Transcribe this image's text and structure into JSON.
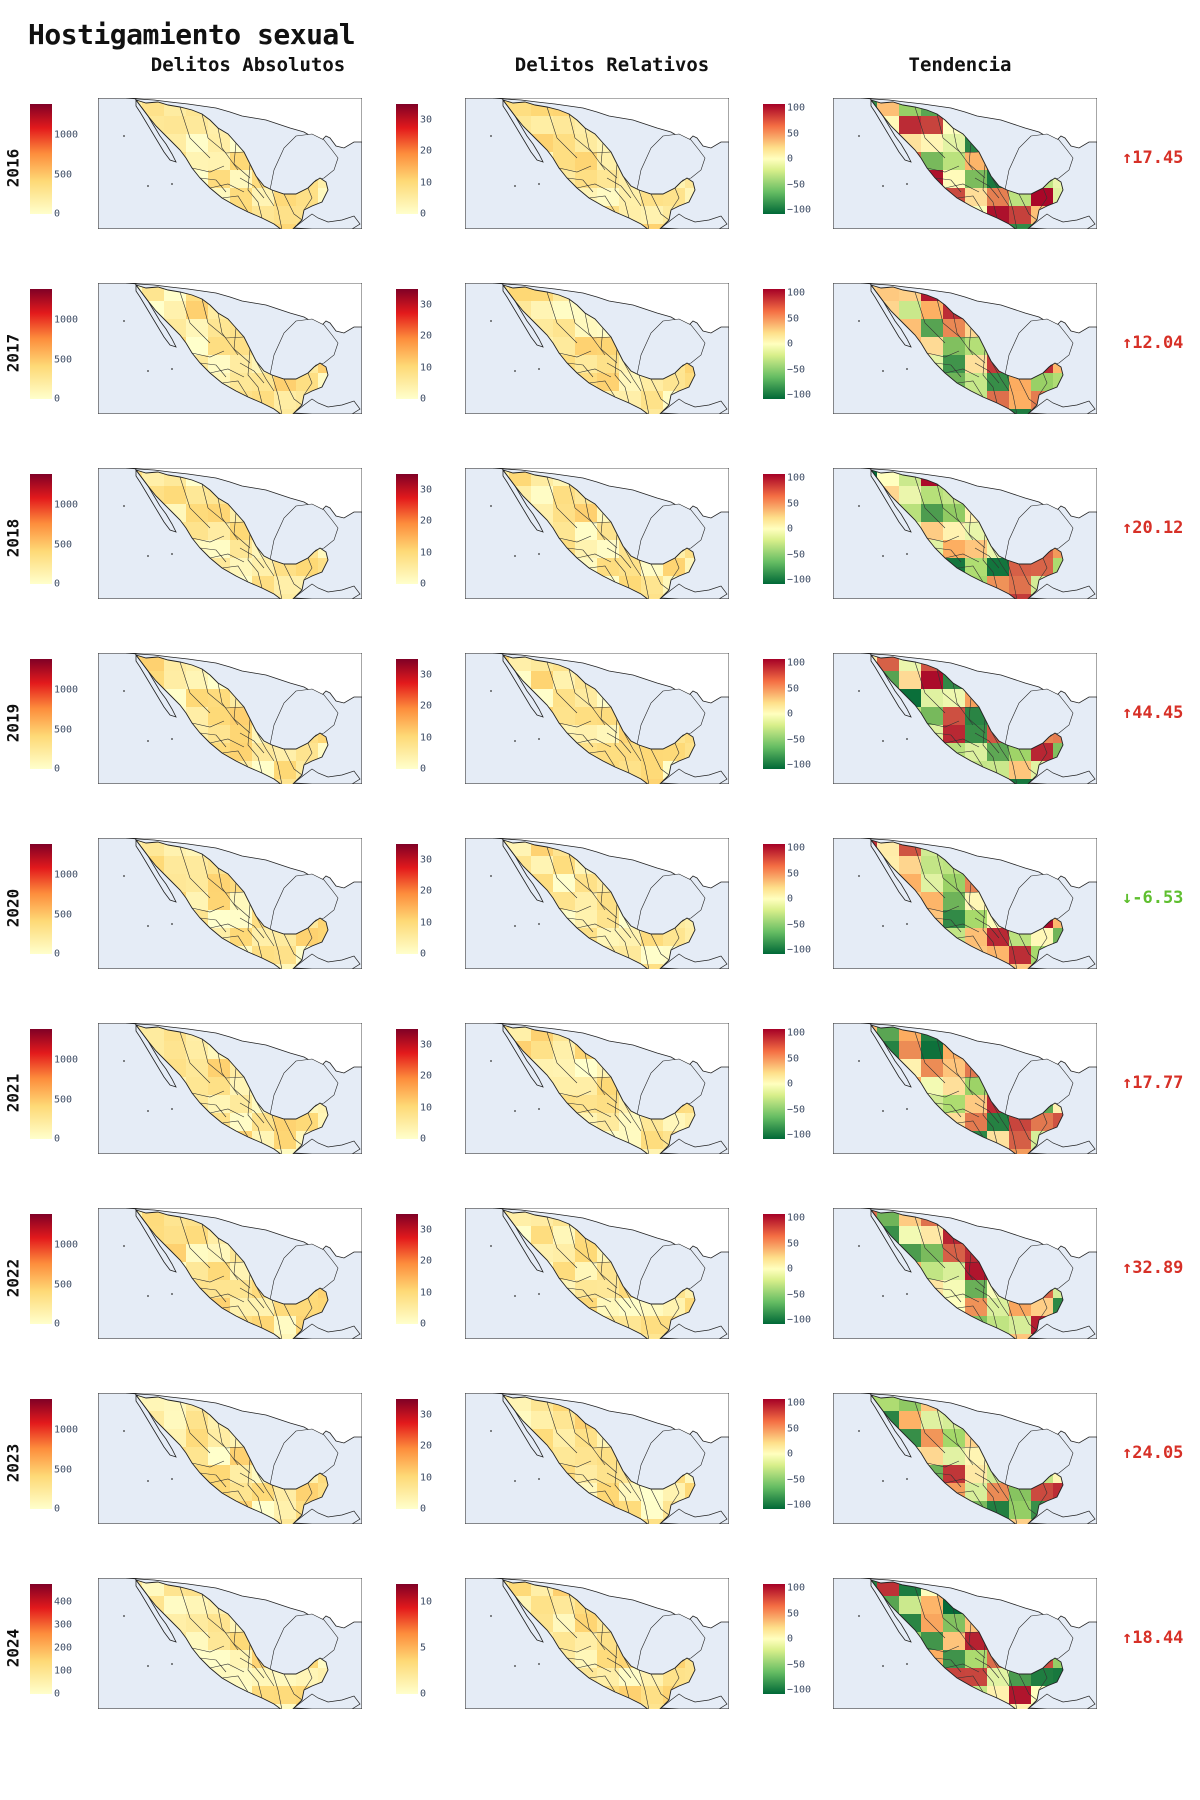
{
  "title": "Hostigamiento sexual",
  "columns": [
    "Delitos Absolutos",
    "Delitos Relativos",
    "Tendencia"
  ],
  "colors": {
    "sequential": [
      "#ffffcc",
      "#fed976",
      "#fd8d3c",
      "#e31a1c",
      "#800026"
    ],
    "diverging": [
      "#006837",
      "#a6d96a",
      "#ffffbf",
      "#fdae61",
      "#a50026"
    ],
    "ocean": "#e5ecf6",
    "border": "#333333"
  },
  "rows": [
    {
      "year": "2016",
      "abs_ticks": [
        "1000",
        "500",
        "0"
      ],
      "abs_max": 1400,
      "rel_ticks": [
        "30",
        "20",
        "10",
        "0"
      ],
      "rel_max": 35,
      "trend_ticks": [
        "100",
        "50",
        "0",
        "−50",
        "−100"
      ],
      "trend_text": "↑17.45",
      "trend_value": 17.45,
      "dir": "up"
    },
    {
      "year": "2017",
      "abs_ticks": [
        "1000",
        "500",
        "0"
      ],
      "abs_max": 1400,
      "rel_ticks": [
        "30",
        "20",
        "10",
        "0"
      ],
      "rel_max": 35,
      "trend_ticks": [
        "100",
        "50",
        "0",
        "−50",
        "−100"
      ],
      "trend_text": "↑12.04",
      "trend_value": 12.04,
      "dir": "up"
    },
    {
      "year": "2018",
      "abs_ticks": [
        "1000",
        "500",
        "0"
      ],
      "abs_max": 1400,
      "rel_ticks": [
        "30",
        "20",
        "10",
        "0"
      ],
      "rel_max": 35,
      "trend_ticks": [
        "100",
        "50",
        "0",
        "−50",
        "−100"
      ],
      "trend_text": "↑20.12",
      "trend_value": 20.12,
      "dir": "up"
    },
    {
      "year": "2019",
      "abs_ticks": [
        "1000",
        "500",
        "0"
      ],
      "abs_max": 1400,
      "rel_ticks": [
        "30",
        "20",
        "10",
        "0"
      ],
      "rel_max": 35,
      "trend_ticks": [
        "100",
        "50",
        "0",
        "−50",
        "−100"
      ],
      "trend_text": "↑44.45",
      "trend_value": 44.45,
      "dir": "up"
    },
    {
      "year": "2020",
      "abs_ticks": [
        "1000",
        "500",
        "0"
      ],
      "abs_max": 1400,
      "rel_ticks": [
        "30",
        "20",
        "10",
        "0"
      ],
      "rel_max": 35,
      "trend_ticks": [
        "100",
        "50",
        "0",
        "−50",
        "−100"
      ],
      "trend_text": "↓-6.53",
      "trend_value": -6.53,
      "dir": "down"
    },
    {
      "year": "2021",
      "abs_ticks": [
        "1000",
        "500",
        "0"
      ],
      "abs_max": 1400,
      "rel_ticks": [
        "30",
        "20",
        "10",
        "0"
      ],
      "rel_max": 35,
      "trend_ticks": [
        "100",
        "50",
        "0",
        "−50",
        "−100"
      ],
      "trend_text": "↑17.77",
      "trend_value": 17.77,
      "dir": "up"
    },
    {
      "year": "2022",
      "abs_ticks": [
        "1000",
        "500",
        "0"
      ],
      "abs_max": 1400,
      "rel_ticks": [
        "30",
        "20",
        "10",
        "0"
      ],
      "rel_max": 35,
      "trend_ticks": [
        "100",
        "50",
        "0",
        "−50",
        "−100"
      ],
      "trend_text": "↑32.89",
      "trend_value": 32.89,
      "dir": "up"
    },
    {
      "year": "2023",
      "abs_ticks": [
        "1000",
        "500",
        "0"
      ],
      "abs_max": 1400,
      "rel_ticks": [
        "30",
        "20",
        "10",
        "0"
      ],
      "rel_max": 35,
      "trend_ticks": [
        "100",
        "50",
        "0",
        "−50",
        "−100"
      ],
      "trend_text": "↑24.05",
      "trend_value": 24.05,
      "dir": "up"
    },
    {
      "year": "2024",
      "abs_ticks": [
        "400",
        "300",
        "200",
        "100",
        "0"
      ],
      "abs_max": 480,
      "rel_ticks": [
        "10",
        "5",
        "0"
      ],
      "rel_max": 12,
      "trend_ticks": [
        "100",
        "50",
        "0",
        "−50",
        "−100"
      ],
      "trend_text": "↑18.44",
      "trend_value": 18.44,
      "dir": "up"
    }
  ]
}
